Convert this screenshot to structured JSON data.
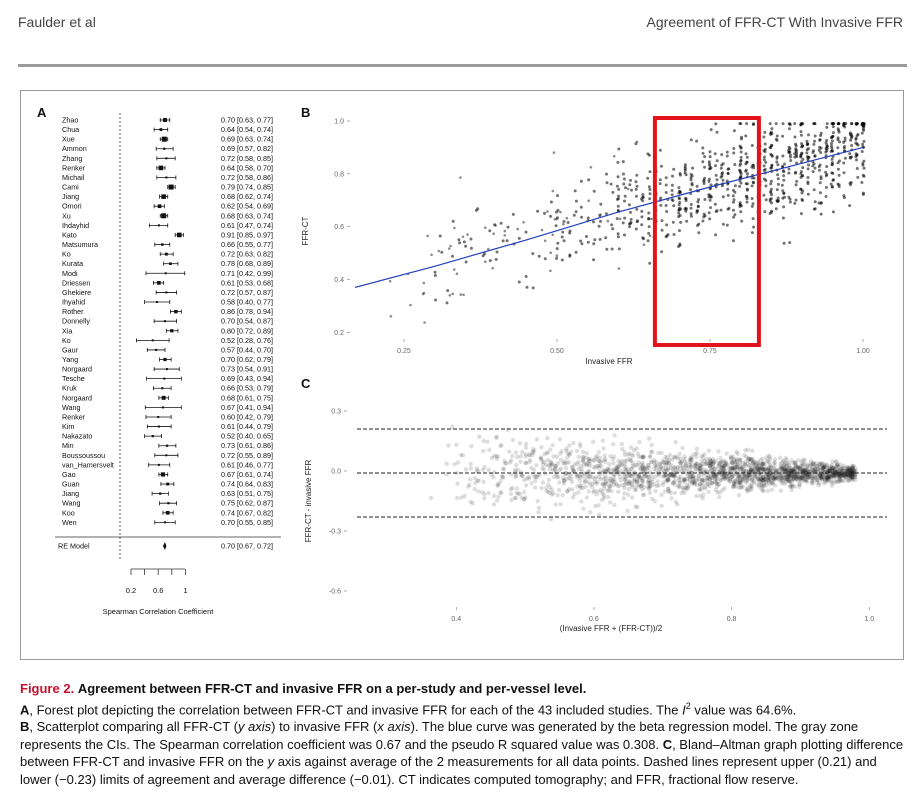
{
  "header": {
    "left": "Faulder et al",
    "right": "Agreement of FFR-CT With Invasive FFR"
  },
  "panels": {
    "a": "A",
    "b": "B",
    "c": "C"
  },
  "forest": {
    "studies": [
      {
        "name": "Zhao",
        "est": 0.7,
        "lo": 0.63,
        "hi": 0.77,
        "label": "0.70 [0.63, 0.77]"
      },
      {
        "name": "Chua",
        "est": 0.64,
        "lo": 0.54,
        "hi": 0.74,
        "label": "0.64 [0.54, 0.74]"
      },
      {
        "name": "Xue",
        "est": 0.69,
        "lo": 0.63,
        "hi": 0.74,
        "label": "0.69 [0.63, 0.74]"
      },
      {
        "name": "Ammon",
        "est": 0.69,
        "lo": 0.57,
        "hi": 0.82,
        "label": "0.69 [0.57, 0.82]"
      },
      {
        "name": "Zhang",
        "est": 0.72,
        "lo": 0.58,
        "hi": 0.85,
        "label": "0.72 [0.58, 0.85]"
      },
      {
        "name": "Renker",
        "est": 0.64,
        "lo": 0.58,
        "hi": 0.7,
        "label": "0.64 [0.58, 0.70]"
      },
      {
        "name": "Michail",
        "est": 0.72,
        "lo": 0.58,
        "hi": 0.86,
        "label": "0.72 [0.58, 0.86]"
      },
      {
        "name": "Cami",
        "est": 0.79,
        "lo": 0.74,
        "hi": 0.85,
        "label": "0.79 [0.74, 0.85]"
      },
      {
        "name": "Jiang",
        "est": 0.68,
        "lo": 0.62,
        "hi": 0.74,
        "label": "0.68 [0.62, 0.74]"
      },
      {
        "name": "Omori",
        "est": 0.62,
        "lo": 0.54,
        "hi": 0.69,
        "label": "0.62 [0.54, 0.69]"
      },
      {
        "name": "Xu",
        "est": 0.68,
        "lo": 0.63,
        "hi": 0.74,
        "label": "0.68 [0.63, 0.74]"
      },
      {
        "name": "Ihdayhid",
        "est": 0.61,
        "lo": 0.47,
        "hi": 0.74,
        "label": "0.61 [0.47, 0.74]"
      },
      {
        "name": "Kato",
        "est": 0.91,
        "lo": 0.85,
        "hi": 0.97,
        "label": "0.91 [0.85, 0.97]"
      },
      {
        "name": "Matsumura",
        "est": 0.66,
        "lo": 0.55,
        "hi": 0.77,
        "label": "0.66 [0.55, 0.77]"
      },
      {
        "name": "Ko",
        "est": 0.72,
        "lo": 0.63,
        "hi": 0.82,
        "label": "0.72 [0.63, 0.82]"
      },
      {
        "name": "Kurata",
        "est": 0.78,
        "lo": 0.68,
        "hi": 0.89,
        "label": "0.78 [0.68, 0.89]"
      },
      {
        "name": "Modi",
        "est": 0.71,
        "lo": 0.42,
        "hi": 0.99,
        "label": "0.71 [0.42, 0.99]"
      },
      {
        "name": "Driessen",
        "est": 0.61,
        "lo": 0.53,
        "hi": 0.68,
        "label": "0.61 [0.53, 0.68]"
      },
      {
        "name": "Ghekiere",
        "est": 0.72,
        "lo": 0.57,
        "hi": 0.87,
        "label": "0.72 [0.57, 0.87]"
      },
      {
        "name": "Ihyahid",
        "est": 0.58,
        "lo": 0.4,
        "hi": 0.77,
        "label": "0.58 [0.40, 0.77]"
      },
      {
        "name": "Rother",
        "est": 0.86,
        "lo": 0.78,
        "hi": 0.94,
        "label": "0.86 [0.78, 0.94]"
      },
      {
        "name": "Donnelly",
        "est": 0.7,
        "lo": 0.54,
        "hi": 0.87,
        "label": "0.70 [0.54, 0.87]"
      },
      {
        "name": "Xia",
        "est": 0.8,
        "lo": 0.72,
        "hi": 0.89,
        "label": "0.80 [0.72, 0.89]"
      },
      {
        "name": "Ko",
        "est": 0.52,
        "lo": 0.28,
        "hi": 0.76,
        "label": "0.52 [0.28, 0.76]"
      },
      {
        "name": "Gaur",
        "est": 0.57,
        "lo": 0.44,
        "hi": 0.7,
        "label": "0.57 [0.44, 0.70]"
      },
      {
        "name": "Yang",
        "est": 0.7,
        "lo": 0.62,
        "hi": 0.79,
        "label": "0.70 [0.62, 0.79]"
      },
      {
        "name": "Norgaard",
        "est": 0.73,
        "lo": 0.54,
        "hi": 0.91,
        "label": "0.73 [0.54, 0.91]"
      },
      {
        "name": "Tesche",
        "est": 0.69,
        "lo": 0.43,
        "hi": 0.94,
        "label": "0.69 [0.43, 0.94]"
      },
      {
        "name": "Kruk",
        "est": 0.66,
        "lo": 0.53,
        "hi": 0.79,
        "label": "0.66 [0.53, 0.79]"
      },
      {
        "name": "Norgaard",
        "est": 0.68,
        "lo": 0.61,
        "hi": 0.75,
        "label": "0.68 [0.61, 0.75]"
      },
      {
        "name": "Wang",
        "est": 0.67,
        "lo": 0.41,
        "hi": 0.94,
        "label": "0.67 [0.41, 0.94]"
      },
      {
        "name": "Renker",
        "est": 0.6,
        "lo": 0.42,
        "hi": 0.79,
        "label": "0.60 [0.42, 0.79]"
      },
      {
        "name": "Kim",
        "est": 0.61,
        "lo": 0.44,
        "hi": 0.79,
        "label": "0.61 [0.44, 0.79]"
      },
      {
        "name": "Nakazato",
        "est": 0.52,
        "lo": 0.4,
        "hi": 0.65,
        "label": "0.52 [0.40, 0.65]"
      },
      {
        "name": "Min",
        "est": 0.73,
        "lo": 0.61,
        "hi": 0.86,
        "label": "0.73 [0.61, 0.86]"
      },
      {
        "name": "Boussoussou",
        "est": 0.72,
        "lo": 0.55,
        "hi": 0.89,
        "label": "0.72 [0.55, 0.89]"
      },
      {
        "name": "van_Hamersvelt",
        "est": 0.61,
        "lo": 0.46,
        "hi": 0.77,
        "label": "0.61 [0.46, 0.77]"
      },
      {
        "name": "Gao",
        "est": 0.67,
        "lo": 0.61,
        "hi": 0.74,
        "label": "0.67 [0.61, 0.74]"
      },
      {
        "name": "Guan",
        "est": 0.74,
        "lo": 0.64,
        "hi": 0.83,
        "label": "0.74 [0.64, 0.83]"
      },
      {
        "name": "Jiang",
        "est": 0.63,
        "lo": 0.51,
        "hi": 0.75,
        "label": "0.63 [0.51, 0.75]"
      },
      {
        "name": "Wang",
        "est": 0.75,
        "lo": 0.62,
        "hi": 0.87,
        "label": "0.75 [0.62, 0.87]"
      },
      {
        "name": "Koo",
        "est": 0.74,
        "lo": 0.67,
        "hi": 0.82,
        "label": "0.74 [0.67, 0.82]"
      },
      {
        "name": "Wen",
        "est": 0.7,
        "lo": 0.55,
        "hi": 0.85,
        "label": "0.70 [0.55, 0.85]"
      }
    ],
    "summary": {
      "name": "RE Model",
      "est": 0.7,
      "lo": 0.67,
      "hi": 0.72,
      "label": "0.70 [0.67, 0.72]"
    },
    "axis_ticks": [
      "0.2",
      "0.6",
      "1"
    ],
    "xlabel": "Spearman Correlation Coefficient"
  },
  "scatter": {
    "xlabel": "Invasive FFR",
    "ylabel": "FFR-CT",
    "x_ticks": [
      "0.25",
      "0.50",
      "0.75",
      "1.00"
    ],
    "y_ticks": [
      "0.2",
      "0.4",
      "0.6",
      "0.8",
      "1.0"
    ],
    "xlim": [
      0.17,
      1.0
    ],
    "ylim": [
      0.19,
      1.0
    ],
    "curve": [
      [
        0.17,
        0.37
      ],
      [
        0.3,
        0.45
      ],
      [
        0.45,
        0.55
      ],
      [
        0.6,
        0.655
      ],
      [
        0.75,
        0.75
      ],
      [
        0.9,
        0.84
      ],
      [
        1.0,
        0.9
      ]
    ],
    "highlight_x": [
      0.66,
      0.83
    ],
    "curve_color": "#1f3fbf",
    "highlight_color": "#e3131b"
  },
  "bland_altman": {
    "xlabel": "(Invasive FFR + (FFR-CT))/2",
    "ylabel": "FFR-CT - invasive FFR",
    "x_ticks": [
      "0.4",
      "0.6",
      "0.8",
      "1.0"
    ],
    "y_ticks": [
      "0.3",
      "0.0",
      "-0.3",
      "-0.6"
    ],
    "xlim": [
      0.25,
      1.02
    ],
    "ylim": [
      -0.65,
      0.4
    ],
    "upper_loa": 0.21,
    "lower_loa": -0.23,
    "mean_diff": -0.01
  },
  "caption": {
    "figure_number": "Figure 2.",
    "title": "Agreement between FFR-CT and invasive FFR on a per-study and per-vessel level.",
    "label_a": "A",
    "text_a1": ", Forest plot depicting the correlation between FFR-CT and invasive FFR for each of the 43 included studies. The ",
    "i2_symbol": "I",
    "i2_sup": "2",
    "text_a2": " value was 64.6%.",
    "label_b": "B",
    "text_b1": ", Scatterplot comparing all FFR-CT (",
    "y_axis_word": "y axis",
    "text_b2": ") to invasive FFR (",
    "x_axis_word": "x axis",
    "text_b3": "). The blue curve was generated by the beta regression model. The gray zone represents the CIs. The Spearman correlation coefficient was 0.67 and the pseudo R squared value was 0.308. ",
    "label_c": "C",
    "text_c1": ", Bland–Altman graph plotting difference between FFR-CT and invasive FFR on the ",
    "y_word": "y",
    "text_c2": " axis against average of the 2 measurements for all data points. Dashed lines represent upper (0.21) and lower (−0.23) limits of agreement and average difference (−0.01). CT indicates computed tomography; and FFR, fractional flow reserve."
  }
}
